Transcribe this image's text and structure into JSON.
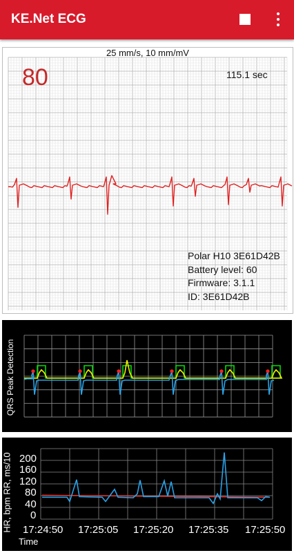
{
  "app": {
    "title": "KE.Net ECG",
    "accent_color": "#d81b2b",
    "actions": [
      {
        "name": "stop",
        "icon": "stop-icon"
      },
      {
        "name": "more",
        "icon": "more-vert-icon"
      }
    ]
  },
  "ecg": {
    "scale": "25 mm/s, 10 mm/mV",
    "heart_rate": "80",
    "elapsed": "115.1 sec",
    "trace_color": "#e02020",
    "device": {
      "model_line": "Polar H10 3E61D42B",
      "battery_line": "Battery level: 60",
      "firmware_line": "Firmware: 3.1.1",
      "id_line": "ID: 3E61D42B"
    }
  },
  "qrs": {
    "title": "QRS Peak Detection",
    "colors": {
      "signal": "#29a3e8",
      "threshold": "#00e000",
      "score": "#f0f000",
      "peak": "#ff2020"
    }
  },
  "hr_plot": {
    "ylabel": "HR, bpm RR, ms/10",
    "xlabel": "Time",
    "yticks": [
      "200",
      "160",
      "120",
      "80",
      "40",
      "0"
    ],
    "xticks": [
      "17:24:50",
      "17:25:05",
      "17:25:20",
      "17:25:35",
      "17:25:50"
    ],
    "colors": {
      "hr": "#e53935",
      "rr": "#29a3e8"
    }
  }
}
